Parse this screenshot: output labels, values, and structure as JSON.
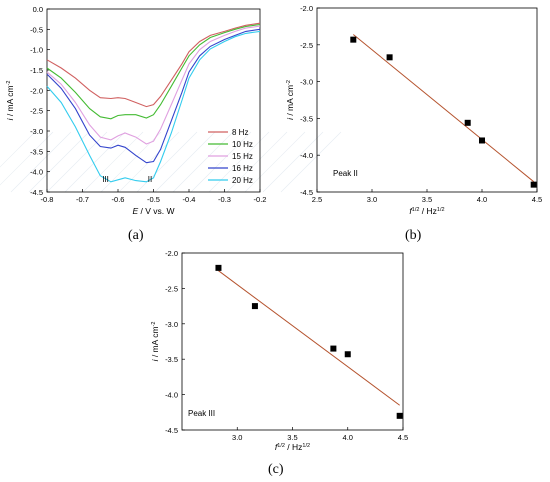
{
  "chart_data": [
    {
      "panel": "(a)",
      "type": "line",
      "xlabel_italic": "E",
      "xlabel_rest": " / V vs. W",
      "ylabel_italic": "i",
      "ylabel_rest": " / mA cm",
      "ylabel_sup": "-2",
      "xlim": [
        -0.8,
        -0.2
      ],
      "ylim": [
        -4.5,
        0.0
      ],
      "xticks": [
        "-0.8",
        "-0.7",
        "-0.6",
        "-0.5",
        "-0.4",
        "-0.3",
        "-0.2"
      ],
      "yticks": [
        "0.0",
        "-0.5",
        "-1.0",
        "-1.5",
        "-2.0",
        "-2.5",
        "-3.0",
        "-3.5",
        "-4.0",
        "-4.5"
      ],
      "peak_labels": [
        {
          "text": "III",
          "x": -0.635
        },
        {
          "text": "II",
          "x": -0.51
        }
      ],
      "legend_placement": "bottom-right",
      "series": [
        {
          "name": "8   Hz",
          "color": "#d06060",
          "x": [
            -0.8,
            -0.76,
            -0.72,
            -0.68,
            -0.65,
            -0.62,
            -0.6,
            -0.58,
            -0.55,
            -0.52,
            -0.5,
            -0.48,
            -0.45,
            -0.42,
            -0.4,
            -0.37,
            -0.34,
            -0.3,
            -0.27,
            -0.24,
            -0.2
          ],
          "y": [
            -1.25,
            -1.45,
            -1.7,
            -2.0,
            -2.18,
            -2.2,
            -2.18,
            -2.2,
            -2.3,
            -2.4,
            -2.35,
            -2.15,
            -1.75,
            -1.35,
            -1.05,
            -0.8,
            -0.65,
            -0.55,
            -0.47,
            -0.4,
            -0.35
          ]
        },
        {
          "name": "10 Hz",
          "color": "#44bb33",
          "x": [
            -0.8,
            -0.76,
            -0.72,
            -0.68,
            -0.65,
            -0.62,
            -0.6,
            -0.58,
            -0.55,
            -0.52,
            -0.5,
            -0.48,
            -0.45,
            -0.42,
            -0.4,
            -0.37,
            -0.34,
            -0.3,
            -0.27,
            -0.24,
            -0.2
          ],
          "y": [
            -1.45,
            -1.7,
            -2.05,
            -2.45,
            -2.65,
            -2.7,
            -2.62,
            -2.6,
            -2.6,
            -2.68,
            -2.6,
            -2.35,
            -1.9,
            -1.45,
            -1.15,
            -0.88,
            -0.7,
            -0.58,
            -0.5,
            -0.43,
            -0.38
          ]
        },
        {
          "name": "15 Hz",
          "color": "#e0a0e0",
          "x": [
            -0.8,
            -0.76,
            -0.72,
            -0.68,
            -0.65,
            -0.62,
            -0.6,
            -0.58,
            -0.55,
            -0.52,
            -0.5,
            -0.48,
            -0.45,
            -0.42,
            -0.4,
            -0.37,
            -0.34,
            -0.3,
            -0.27,
            -0.24,
            -0.2
          ],
          "y": [
            -1.55,
            -1.85,
            -2.3,
            -2.85,
            -3.15,
            -3.22,
            -3.12,
            -3.05,
            -3.15,
            -3.32,
            -3.25,
            -2.95,
            -2.35,
            -1.75,
            -1.35,
            -1.0,
            -0.8,
            -0.65,
            -0.55,
            -0.47,
            -0.42
          ]
        },
        {
          "name": "16 Hz",
          "color": "#3344cc",
          "x": [
            -0.8,
            -0.76,
            -0.72,
            -0.68,
            -0.65,
            -0.62,
            -0.6,
            -0.58,
            -0.55,
            -0.52,
            -0.5,
            -0.48,
            -0.45,
            -0.42,
            -0.4,
            -0.37,
            -0.34,
            -0.3,
            -0.27,
            -0.24,
            -0.2
          ],
          "y": [
            -1.6,
            -1.95,
            -2.45,
            -3.1,
            -3.38,
            -3.42,
            -3.35,
            -3.4,
            -3.6,
            -3.78,
            -3.75,
            -3.45,
            -2.75,
            -2.05,
            -1.55,
            -1.15,
            -0.92,
            -0.75,
            -0.65,
            -0.55,
            -0.5
          ]
        },
        {
          "name": "20 Hz",
          "color": "#33ccee",
          "x": [
            -0.8,
            -0.76,
            -0.72,
            -0.68,
            -0.65,
            -0.62,
            -0.6,
            -0.58,
            -0.55,
            -0.52,
            -0.5,
            -0.48,
            -0.45,
            -0.42,
            -0.4,
            -0.37,
            -0.34,
            -0.3,
            -0.27,
            -0.24,
            -0.2
          ],
          "y": [
            -1.9,
            -2.3,
            -2.9,
            -3.6,
            -4.1,
            -4.25,
            -4.2,
            -4.15,
            -4.22,
            -4.25,
            -4.15,
            -3.75,
            -3.05,
            -2.25,
            -1.7,
            -1.25,
            -0.98,
            -0.8,
            -0.68,
            -0.6,
            -0.55
          ]
        }
      ]
    },
    {
      "panel": "(b)",
      "type": "scatter",
      "annotation": "Peak II",
      "xlabel_italic": "f",
      "xlabel_sup1": "1/2",
      "xlabel_rest": " / Hz",
      "xlabel_sup2": "1/2",
      "ylabel_italic": "i",
      "ylabel_rest": " / mA cm",
      "ylabel_sup": "-2",
      "xlim": [
        2.5,
        4.5
      ],
      "ylim": [
        -4.5,
        -2.0
      ],
      "xticks": [
        "2.5",
        "3.0",
        "3.5",
        "4.0",
        "4.5"
      ],
      "yticks": [
        "-2.0",
        "-2.5",
        "-3.0",
        "-3.5",
        "-4.0",
        "-4.5"
      ],
      "points": {
        "x": [
          2.83,
          3.16,
          3.87,
          4.0,
          4.47
        ],
        "y": [
          -2.43,
          -2.67,
          -3.56,
          -3.8,
          -4.4
        ]
      },
      "fit_line": {
        "x": [
          2.83,
          4.47
        ],
        "y": [
          -2.36,
          -4.36
        ],
        "color": "#b5532e"
      }
    },
    {
      "panel": "(c)",
      "type": "scatter",
      "annotation": "Peak III",
      "xlabel_italic": "f",
      "xlabel_sup1": "1/2",
      "xlabel_rest": " / Hz",
      "xlabel_sup2": "1/2",
      "ylabel_italic": "i",
      "ylabel_rest": " / mA cm",
      "ylabel_sup": "-2",
      "xlim": [
        2.5,
        4.5
      ],
      "ylim": [
        -4.5,
        -2.0
      ],
      "xticks": [
        "3.0",
        "3.5",
        "4.0",
        "4.5"
      ],
      "yticks": [
        "-2.0",
        "-2.5",
        "-3.0",
        "-3.5",
        "-4.0",
        "-4.5"
      ],
      "points": {
        "x": [
          2.83,
          3.16,
          3.87,
          4.0,
          4.47
        ],
        "y": [
          -2.21,
          -2.75,
          -3.35,
          -3.43,
          -4.3
        ]
      },
      "fit_line": {
        "x": [
          2.83,
          4.47
        ],
        "y": [
          -2.25,
          -4.15
        ],
        "color": "#b5532e"
      }
    }
  ]
}
